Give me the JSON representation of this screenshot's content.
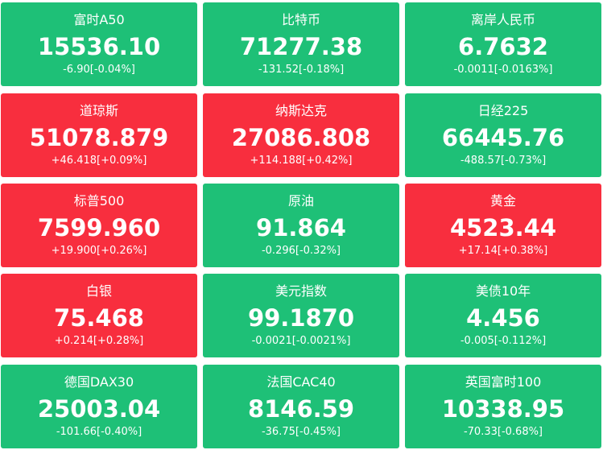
{
  "tiles": [
    {
      "name": "富时A50",
      "price": "15536.10",
      "change": "-6.90[-0.04%]",
      "color": "#1ec077"
    },
    {
      "name": "比特币",
      "price": "71277.38",
      "change": "-131.52[-0.18%]",
      "color": "#1ec077"
    },
    {
      "name": "离岸人民币",
      "price": "6.7632",
      "change": "-0.0011[-0.0163%]",
      "color": "#1ec077"
    },
    {
      "name": "道琼斯",
      "price": "51078.879",
      "change": "+46.418[+0.09%]",
      "color": "#f82e3e"
    },
    {
      "name": "纳斯达克",
      "price": "27086.808",
      "change": "+114.188[+0.42%]",
      "color": "#f82e3e"
    },
    {
      "name": "日经225",
      "price": "66445.76",
      "change": "-488.57[-0.73%]",
      "color": "#1ec077"
    },
    {
      "name": "标普500",
      "price": "7599.960",
      "change": "+19.900[+0.26%]",
      "color": "#f82e3e"
    },
    {
      "name": "原油",
      "price": "91.864",
      "change": "-0.296[-0.32%]",
      "color": "#1ec077"
    },
    {
      "name": "黄金",
      "price": "4523.44",
      "change": "+17.14[+0.38%]",
      "color": "#f82e3e"
    },
    {
      "name": "白银",
      "price": "75.468",
      "change": "+0.214[+0.28%]",
      "color": "#f82e3e"
    },
    {
      "name": "美元指数",
      "price": "99.1870",
      "change": "-0.0021[-0.0021%]",
      "color": "#1ec077"
    },
    {
      "name": "美债10年",
      "price": "4.456",
      "change": "-0.005[-0.112%]",
      "color": "#1ec077"
    },
    {
      "name": "德国DAX30",
      "price": "25003.04",
      "change": "-101.66[-0.40%]",
      "color": "#1ec077"
    },
    {
      "name": "法国CAC40",
      "price": "8146.59",
      "change": "-36.75[-0.45%]",
      "color": "#1ec077"
    },
    {
      "name": "英国富时100",
      "price": "10338.95",
      "change": "-70.33[-0.68%]",
      "color": "#1ec077"
    }
  ]
}
